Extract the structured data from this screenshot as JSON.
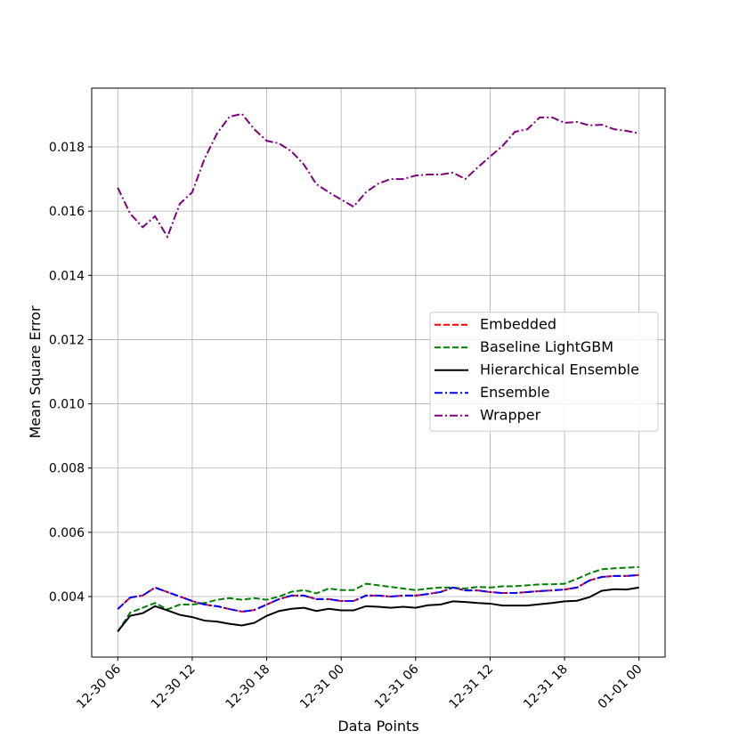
{
  "chart_data": {
    "type": "line",
    "xlabel": "Data Points",
    "ylabel": "Mean Square Error",
    "categories": [
      "12-30 06",
      null,
      null,
      null,
      null,
      null,
      "12-30 12",
      null,
      null,
      null,
      null,
      null,
      "12-30 18",
      null,
      null,
      null,
      null,
      null,
      "12-31 00",
      null,
      null,
      null,
      null,
      null,
      "12-31 06",
      null,
      null,
      null,
      null,
      null,
      "12-31 12",
      null,
      null,
      null,
      null,
      null,
      "12-31 18",
      null,
      null,
      null,
      null,
      null,
      "01-01 00"
    ],
    "ylim": [
      0.002115,
      0.01983
    ],
    "yticks": [
      0.004,
      0.006,
      0.008,
      {
        "value": 0.01,
        "label": "0.010"
      },
      0.012,
      0.014,
      0.016,
      0.018
    ],
    "grid": true,
    "legend": "center right",
    "series": [
      {
        "name": "Embedded",
        "color": "#ff0000",
        "dash": "dashed",
        "values": [
          0.00361,
          0.00397,
          0.00403,
          0.00428,
          0.00414,
          0.004,
          0.00386,
          0.00375,
          0.0037,
          0.00361,
          0.00353,
          0.00358,
          0.00375,
          0.00392,
          0.00403,
          0.00403,
          0.00392,
          0.00392,
          0.00386,
          0.00386,
          0.00403,
          0.00403,
          0.004,
          0.00403,
          0.00403,
          0.00408,
          0.00414,
          0.00428,
          0.00419,
          0.00419,
          0.00414,
          0.00411,
          0.00411,
          0.00414,
          0.00417,
          0.00419,
          0.00422,
          0.00428,
          0.0045,
          0.00461,
          0.00464,
          0.00464,
          0.00467
        ]
      },
      {
        "name": "Baseline LightGBM",
        "color": "#008000",
        "dash": "dashed",
        "values": [
          0.0029,
          0.0035,
          0.00365,
          0.0038,
          0.0036,
          0.00375,
          0.00375,
          0.0038,
          0.0039,
          0.00395,
          0.0039,
          0.00395,
          0.0039,
          0.004,
          0.00415,
          0.0042,
          0.0041,
          0.00425,
          0.0042,
          0.0042,
          0.0044,
          0.00435,
          0.0043,
          0.00425,
          0.0042,
          0.00425,
          0.00428,
          0.00428,
          0.00425,
          0.0043,
          0.00428,
          0.00432,
          0.00432,
          0.00435,
          0.00438,
          0.00438,
          0.0044,
          0.00455,
          0.00472,
          0.00485,
          0.00488,
          0.0049,
          0.00492
        ]
      },
      {
        "name": "Hierarchical Ensemble",
        "color": "#000000",
        "dash": "solid",
        "values": [
          0.00292,
          0.0034,
          0.00348,
          0.0037,
          0.00357,
          0.00343,
          0.00336,
          0.00325,
          0.00322,
          0.00315,
          0.0031,
          0.00318,
          0.0034,
          0.00355,
          0.00362,
          0.00365,
          0.00355,
          0.00362,
          0.00357,
          0.00357,
          0.0037,
          0.00368,
          0.00365,
          0.00368,
          0.00365,
          0.00373,
          0.00375,
          0.00385,
          0.00383,
          0.0038,
          0.00378,
          0.00372,
          0.00372,
          0.00372,
          0.00376,
          0.0038,
          0.00385,
          0.00387,
          0.00398,
          0.00418,
          0.00423,
          0.00422,
          0.00428
        ]
      },
      {
        "name": "Ensemble",
        "color": "#0000ff",
        "dash": "dashdot",
        "values": [
          0.00361,
          0.00397,
          0.00403,
          0.00428,
          0.00414,
          0.004,
          0.00386,
          0.00375,
          0.0037,
          0.00361,
          0.00353,
          0.00358,
          0.00375,
          0.00392,
          0.00403,
          0.00403,
          0.00392,
          0.00392,
          0.00386,
          0.00386,
          0.00403,
          0.00403,
          0.004,
          0.00403,
          0.00403,
          0.00408,
          0.00414,
          0.00428,
          0.00419,
          0.00419,
          0.00414,
          0.00411,
          0.00411,
          0.00414,
          0.00417,
          0.00419,
          0.00422,
          0.00428,
          0.0045,
          0.00461,
          0.00464,
          0.00464,
          0.00467
        ]
      },
      {
        "name": "Wrapper",
        "color": "#800080",
        "dash": "dashdot",
        "values": [
          0.01673,
          0.01592,
          0.0155,
          0.01584,
          0.0152,
          0.01623,
          0.01659,
          0.01764,
          0.01842,
          0.01894,
          0.01903,
          0.01855,
          0.01819,
          0.01811,
          0.01786,
          0.01745,
          0.01684,
          0.01659,
          0.01636,
          0.01614,
          0.01659,
          0.01686,
          0.017,
          0.017,
          0.01711,
          0.01714,
          0.01714,
          0.0172,
          0.017,
          0.01736,
          0.0177,
          0.01803,
          0.01847,
          0.01855,
          0.01892,
          0.01892,
          0.01875,
          0.01878,
          0.01867,
          0.01869,
          0.01855,
          0.0185,
          0.01842
        ]
      }
    ]
  }
}
